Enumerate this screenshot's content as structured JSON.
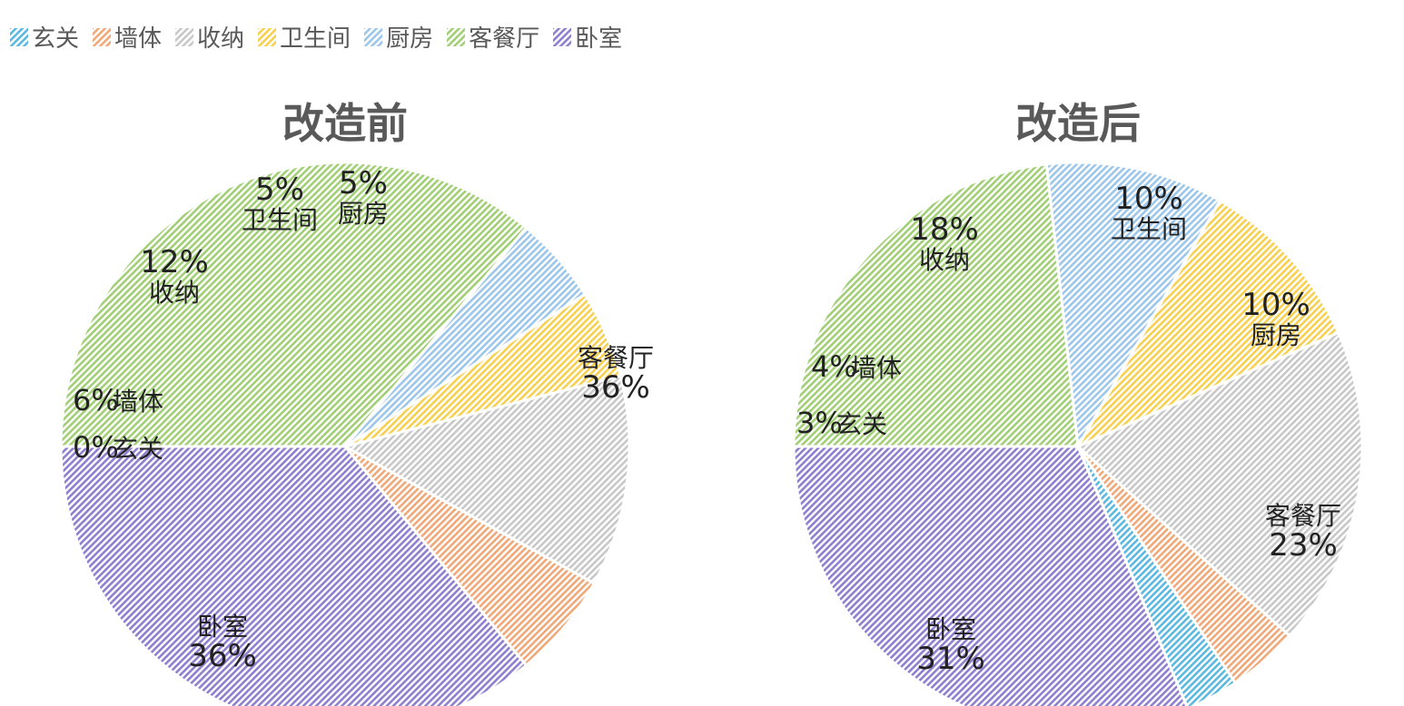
{
  "legend": [
    {
      "label": "玄关",
      "color": "#5bb8e0"
    },
    {
      "label": "墙体",
      "color": "#f0a878"
    },
    {
      "label": "收纳",
      "color": "#c8c8c8"
    },
    {
      "label": "卫生间",
      "color": "#f8d050"
    },
    {
      "label": "厨房",
      "color": "#9cc6ea"
    },
    {
      "label": "客餐厅",
      "color": "#a2cf76"
    },
    {
      "label": "卧室",
      "color": "#8f7fcf"
    }
  ],
  "chart_data": [
    {
      "type": "pie",
      "title": "改造前",
      "slices": [
        {
          "name": "卧室",
          "value": 36,
          "label": "36%"
        },
        {
          "name": "玄关",
          "value": 0,
          "label": "0%"
        },
        {
          "name": "墙体",
          "value": 6,
          "label": "6%"
        },
        {
          "name": "收纳",
          "value": 12,
          "label": "12%"
        },
        {
          "name": "卫生间",
          "value": 5,
          "label": "5%"
        },
        {
          "name": "厨房",
          "value": 5,
          "label": "5%"
        },
        {
          "name": "客餐厅",
          "value": 36,
          "label": "36%"
        }
      ]
    },
    {
      "type": "pie",
      "title": "改造后",
      "slices": [
        {
          "name": "卧室",
          "value": 31,
          "label": "31%"
        },
        {
          "name": "玄关",
          "value": 3,
          "label": "3%"
        },
        {
          "name": "墙体",
          "value": 4,
          "label": "4%"
        },
        {
          "name": "收纳",
          "value": 18,
          "label": "18%"
        },
        {
          "name": "卫生间",
          "value": 10,
          "label": "10%"
        },
        {
          "name": "厨房",
          "value": 10,
          "label": "10%"
        },
        {
          "name": "客餐厅",
          "value": 23,
          "label": "23%"
        }
      ]
    }
  ]
}
